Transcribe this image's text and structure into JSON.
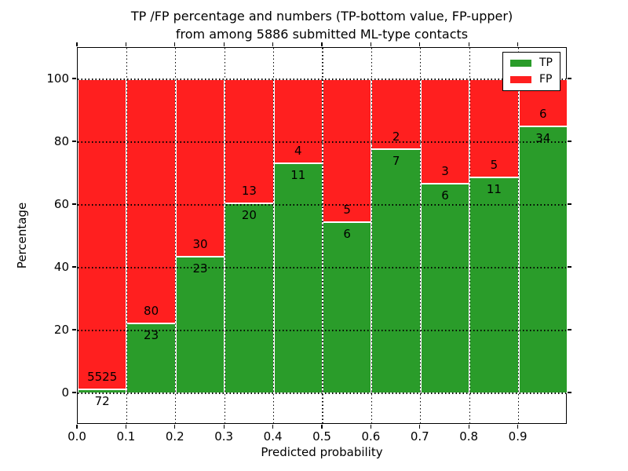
{
  "figure": {
    "title_line1": "TP /FP percentage and numbers (TP-bottom value, FP-upper)",
    "title_line2": "from among 5886 submitted ML-type contacts",
    "xlabel": "Predicted probability",
    "ylabel": "Percentage"
  },
  "chart_data": {
    "type": "bar",
    "stacked": true,
    "normalized": "each bin scaled to 100%",
    "title": "TP /FP percentage and numbers (TP-bottom value, FP-upper) from among 5886 submitted ML-type contacts",
    "xlabel": "Predicted probability",
    "ylabel": "Percentage",
    "total_contacts": 5886,
    "categories": [
      "0.0-0.1",
      "0.1-0.2",
      "0.2-0.3",
      "0.3-0.4",
      "0.4-0.5",
      "0.5-0.6",
      "0.6-0.7",
      "0.7-0.8",
      "0.8-0.9",
      "0.9-1.0"
    ],
    "x_ticks": [
      "0.0",
      "0.1",
      "0.2",
      "0.3",
      "0.4",
      "0.5",
      "0.6",
      "0.7",
      "0.8",
      "0.9"
    ],
    "y_ticks": [
      0,
      20,
      40,
      60,
      80,
      100
    ],
    "xlim": [
      0.0,
      1.0
    ],
    "ylim": [
      -10,
      110
    ],
    "grid": "dotted black, horizontal and vertical",
    "legend_position": "upper right",
    "bar_edge_color": "#ffffff",
    "series": [
      {
        "name": "TP",
        "color": "#2a9c2a",
        "counts": [
          72,
          23,
          23,
          20,
          11,
          6,
          7,
          6,
          11,
          34
        ]
      },
      {
        "name": "FP",
        "color": "#ff1f1f",
        "counts": [
          5525,
          80,
          30,
          13,
          4,
          5,
          2,
          3,
          5,
          6
        ]
      }
    ],
    "tp_percent_of_bin": [
      1.29,
      22.33,
      43.4,
      60.61,
      73.33,
      54.55,
      77.78,
      66.67,
      68.75,
      85.0
    ]
  }
}
